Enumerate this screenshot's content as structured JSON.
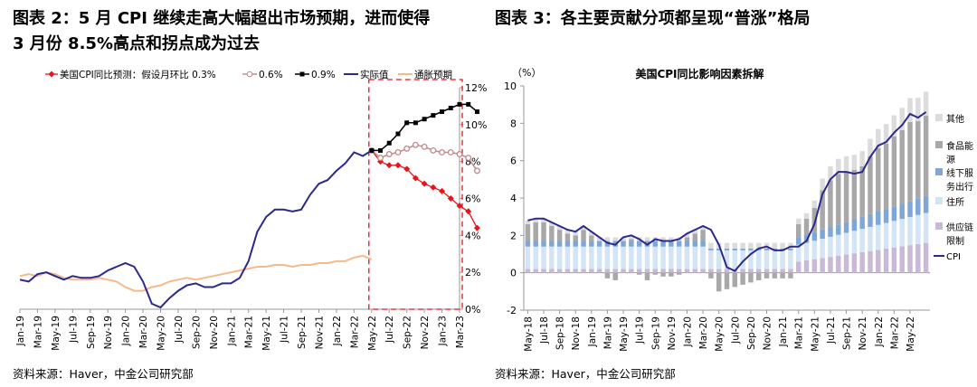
{
  "left": {
    "title_line1": "图表 2：5 月 CPI 继续走高大幅超出市场预期，进而使得",
    "title_line2": "3 月份 8.5%高点和拐点成为过去",
    "source": "资料来源：Haver，中金公司研究部"
  },
  "right": {
    "title": "图表 3：各主要贡献分项都呈现“普涨”格局",
    "source": "资料来源：Haver，中金公司研究部"
  },
  "chart_data": [
    {
      "type": "line",
      "title": "",
      "ylabel": "",
      "ylim": [
        0,
        12
      ],
      "y_ticks": [
        "12%",
        "10%",
        "8%",
        "6%",
        "4%",
        "2%",
        "0%"
      ],
      "x_labels": [
        "Jan-19",
        "Mar-19",
        "May-19",
        "Jul-19",
        "Sep-19",
        "Nov-19",
        "Jan-20",
        "Mar-20",
        "May-20",
        "Jul-20",
        "Sep-20",
        "Nov-20",
        "Jan-21",
        "Mar-21",
        "May-21",
        "Jul-21",
        "Sep-21",
        "Nov-21",
        "Jan-22",
        "Mar-22",
        "May-22",
        "Jul-22",
        "Sep-22",
        "Nov-22",
        "Jan-23",
        "Mar-23"
      ],
      "legend": [
        "美国CPI同比预测：假设月环比 0.3%",
        "0.6%",
        "0.9%",
        "实际值",
        "通胀预期"
      ],
      "colors": {
        "forecast_03": "#e8141b",
        "forecast_06": "#c48a8a",
        "forecast_09": "#000000",
        "actual": "#2b2a8c",
        "expectation": "#f6b98a",
        "highlight_box": "#e8141b"
      },
      "series": [
        {
          "name": "实际值",
          "start": "Jan-19",
          "values": [
            1.6,
            1.5,
            1.9,
            2.0,
            1.8,
            1.6,
            1.8,
            1.7,
            1.7,
            1.8,
            2.1,
            2.3,
            2.5,
            2.3,
            1.5,
            0.3,
            0.1,
            0.6,
            1.0,
            1.3,
            1.4,
            1.2,
            1.2,
            1.4,
            1.4,
            1.7,
            2.6,
            4.2,
            5.0,
            5.4,
            5.4,
            5.3,
            5.4,
            6.2,
            6.8,
            7.0,
            7.5,
            7.9,
            8.5,
            8.3,
            8.6
          ]
        },
        {
          "name": "美国CPI同比预测：假设月环比 0.3%",
          "start": "May-22",
          "values": [
            8.6,
            8.0,
            7.8,
            7.8,
            7.6,
            7.1,
            6.8,
            6.6,
            6.4,
            6.0,
            5.6,
            5.3,
            4.4
          ]
        },
        {
          "name": "0.6%",
          "start": "May-22",
          "values": [
            8.6,
            8.2,
            8.4,
            8.5,
            8.7,
            8.9,
            8.8,
            8.6,
            8.5,
            8.5,
            8.4,
            8.2,
            7.5
          ]
        },
        {
          "name": "0.9%",
          "start": "May-22",
          "values": [
            8.6,
            8.6,
            9.0,
            9.5,
            10.1,
            10.1,
            10.3,
            10.5,
            10.7,
            10.9,
            11.1,
            11.1,
            10.7
          ]
        },
        {
          "name": "通胀预期",
          "start": "Jan-19",
          "values": [
            1.8,
            1.9,
            1.8,
            2.0,
            1.9,
            1.7,
            1.6,
            1.6,
            1.6,
            1.7,
            1.6,
            1.5,
            1.2,
            1.0,
            1.0,
            1.2,
            1.3,
            1.5,
            1.6,
            1.7,
            1.6,
            1.7,
            1.8,
            1.9,
            2.0,
            2.1,
            2.2,
            2.3,
            2.3,
            2.4,
            2.4,
            2.3,
            2.4,
            2.4,
            2.5,
            2.5,
            2.6,
            2.6,
            2.8,
            2.9,
            2.7
          ]
        }
      ]
    },
    {
      "type": "bar",
      "title": "美国CPI同比影响因素拆解",
      "ylabel": "（%）",
      "ylim": [
        -2,
        10
      ],
      "y_ticks": [
        "10",
        "8",
        "6",
        "4",
        "2",
        "0",
        "-2"
      ],
      "x_labels": [
        "May-18",
        "Jul-18",
        "Sep-18",
        "Nov-18",
        "Jan-19",
        "Mar-19",
        "May-19",
        "Jul-19",
        "Sep-19",
        "Nov-19",
        "Jan-20",
        "Mar-20",
        "May-20",
        "Jul-20",
        "Sep-20",
        "Nov-20",
        "Jan-21",
        "Mar-21",
        "May-21",
        "Jul-21",
        "Sep-21",
        "Nov-21",
        "Jan-22",
        "Mar-22",
        "May-22"
      ],
      "legend": [
        "其他",
        "食品能源",
        "线下服务出行",
        "住所",
        "供应链限制",
        "CPI"
      ],
      "colors": {
        "其他": "#dcdcdc",
        "食品能源": "#a8a8a8",
        "线下服务出行": "#7fa6d8",
        "住所": "#d3e5f5",
        "供应链限制": "#c9b8d6",
        "CPI": "#2b2a8c"
      },
      "series": [
        {
          "name": "CPI",
          "values": [
            2.8,
            2.9,
            2.9,
            2.7,
            2.5,
            2.3,
            2.2,
            2.5,
            2.2,
            1.9,
            1.6,
            1.5,
            1.9,
            2.0,
            1.8,
            1.5,
            1.8,
            1.7,
            1.7,
            1.8,
            2.1,
            2.3,
            2.5,
            2.3,
            1.5,
            0.3,
            0.1,
            0.6,
            1.0,
            1.3,
            1.4,
            1.2,
            1.2,
            1.4,
            1.4,
            1.7,
            2.6,
            4.2,
            5.0,
            5.4,
            5.4,
            5.3,
            5.4,
            6.2,
            6.8,
            7.0,
            7.5,
            7.9,
            8.5,
            8.3,
            8.6
          ]
        }
      ],
      "stack_note": "stacked component bars per month"
    }
  ]
}
